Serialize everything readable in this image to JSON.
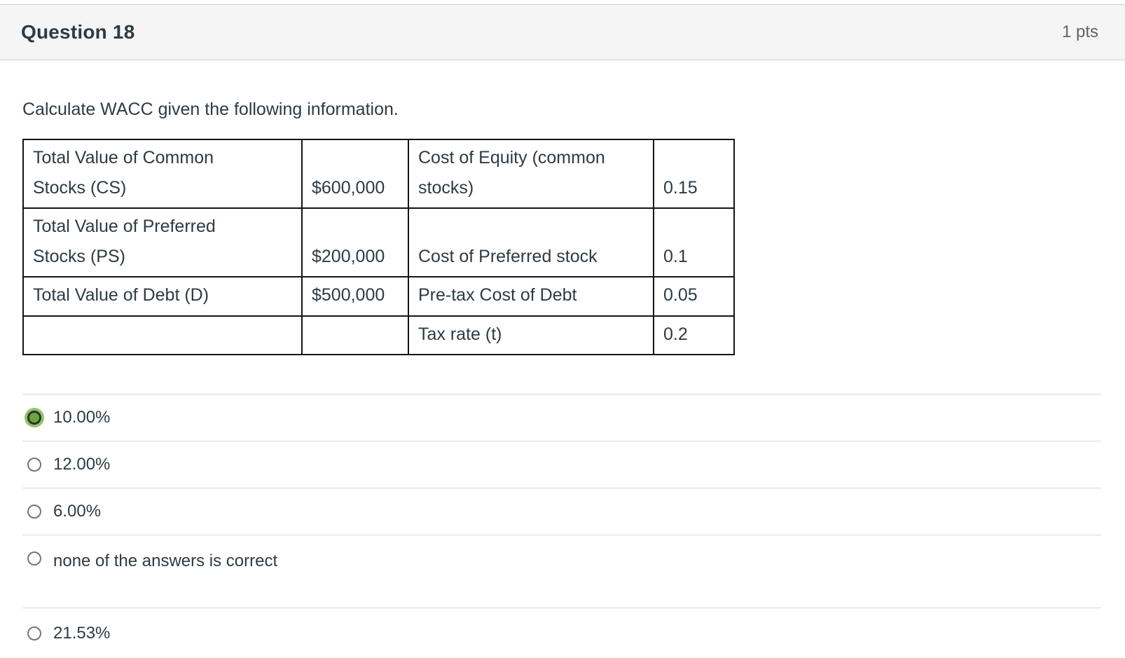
{
  "header": {
    "title": "Question 18",
    "points": "1 pts"
  },
  "prompt": "Calculate WACC given the following information.",
  "table": {
    "rows": [
      {
        "cells": [
          "Total Value of Common Stocks (CS)",
          "$600,000",
          "Cost of Equity (common stocks)",
          "0.15"
        ]
      },
      {
        "cells": [
          "Total Value of Preferred Stocks (PS)",
          "$200,000",
          "Cost of Preferred stock",
          "0.1"
        ]
      },
      {
        "cells": [
          "Total Value of Debt (D)",
          "$500,000",
          "Pre-tax Cost of Debt",
          "0.05"
        ]
      },
      {
        "cells": [
          "",
          "",
          "Tax rate (t)",
          "0.2"
        ]
      }
    ]
  },
  "options": [
    {
      "label": "10.00%",
      "selected": true
    },
    {
      "label": "12.00%",
      "selected": false
    },
    {
      "label": "6.00%",
      "selected": false
    },
    {
      "label": "none of the answers is correct",
      "selected": false
    },
    {
      "label": "21.53%",
      "selected": false
    }
  ],
  "colors": {
    "selected_radio_fill": "#6fa63c",
    "selected_radio_halo": "#90c565",
    "selected_radio_ring": "#273238",
    "header_background": "#f5f5f5",
    "text": "#2d3b45",
    "points_text": "#606468",
    "divider": "#d9d9d9",
    "table_border": "#141414"
  }
}
